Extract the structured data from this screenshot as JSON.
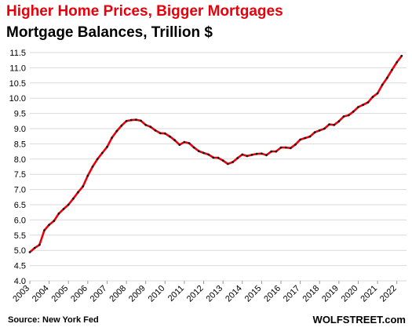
{
  "header": {
    "title": "Higher Home Prices, Bigger Mortgages",
    "subtitle": "Mortgage Balances, Trillion $"
  },
  "footer": {
    "source": "Source: New York Fed",
    "brand": "WOLFSTREET.com"
  },
  "colors": {
    "line": "#e8000b",
    "marker": "#1a1a1a",
    "grid": "#d9d9d9",
    "title": "#e8000b"
  },
  "chart_data": {
    "type": "line",
    "title": "Higher Home Prices, Bigger Mortgages",
    "subtitle": "Mortgage Balances, Trillion $",
    "xlabel": "",
    "ylabel": "",
    "ylim": [
      4.0,
      11.5
    ],
    "yticks": [
      "4.0",
      "4.5",
      "5.0",
      "5.5",
      "6.0",
      "6.5",
      "7.0",
      "7.5",
      "8.0",
      "8.5",
      "9.0",
      "9.5",
      "10.0",
      "10.5",
      "11.0",
      "11.5"
    ],
    "xticks": [
      "2003",
      "2004",
      "2005",
      "2006",
      "2007",
      "2008",
      "2009",
      "2010",
      "2011",
      "2012",
      "2013",
      "2014",
      "2015",
      "2016",
      "2017",
      "2018",
      "2019",
      "2020",
      "2021",
      "2022"
    ],
    "grid": "horizontal",
    "series": [
      {
        "x": [
          "2003 Q1",
          "2003 Q2",
          "2003 Q3",
          "2003 Q4",
          "2004 Q1",
          "2004 Q2",
          "2004 Q3",
          "2004 Q4",
          "2005 Q1",
          "2005 Q2",
          "2005 Q3",
          "2005 Q4",
          "2006 Q1",
          "2006 Q2",
          "2006 Q3",
          "2006 Q4",
          "2007 Q1",
          "2007 Q2",
          "2007 Q3",
          "2007 Q4",
          "2008 Q1",
          "2008 Q2",
          "2008 Q3",
          "2008 Q4",
          "2009 Q1",
          "2009 Q2",
          "2009 Q3",
          "2009 Q4",
          "2010 Q1",
          "2010 Q2",
          "2010 Q3",
          "2010 Q4",
          "2011 Q1",
          "2011 Q2",
          "2011 Q3",
          "2011 Q4",
          "2012 Q1",
          "2012 Q2",
          "2012 Q3",
          "2012 Q4",
          "2013 Q1",
          "2013 Q2",
          "2013 Q3",
          "2013 Q4",
          "2014 Q1",
          "2014 Q2",
          "2014 Q3",
          "2014 Q4",
          "2015 Q1",
          "2015 Q2",
          "2015 Q3",
          "2015 Q4",
          "2016 Q1",
          "2016 Q2",
          "2016 Q3",
          "2016 Q4",
          "2017 Q1",
          "2017 Q2",
          "2017 Q3",
          "2017 Q4",
          "2018 Q1",
          "2018 Q2",
          "2018 Q3",
          "2018 Q4",
          "2019 Q1",
          "2019 Q2",
          "2019 Q3",
          "2019 Q4",
          "2020 Q1",
          "2020 Q2",
          "2020 Q3",
          "2020 Q4",
          "2021 Q1",
          "2021 Q2",
          "2021 Q3",
          "2021 Q4",
          "2022 Q1",
          "2022 Q2"
        ],
        "values": [
          4.94,
          5.08,
          5.18,
          5.66,
          5.84,
          5.97,
          6.21,
          6.36,
          6.5,
          6.7,
          6.91,
          7.1,
          7.45,
          7.75,
          8.0,
          8.2,
          8.4,
          8.7,
          8.92,
          9.1,
          9.25,
          9.28,
          9.29,
          9.26,
          9.12,
          9.06,
          8.94,
          8.85,
          8.84,
          8.74,
          8.62,
          8.47,
          8.56,
          8.52,
          8.38,
          8.26,
          8.2,
          8.15,
          8.05,
          8.04,
          7.95,
          7.84,
          7.9,
          8.03,
          8.15,
          8.1,
          8.14,
          8.17,
          8.18,
          8.13,
          8.25,
          8.25,
          8.38,
          8.38,
          8.36,
          8.48,
          8.64,
          8.69,
          8.74,
          8.88,
          8.94,
          9.0,
          9.14,
          9.12,
          9.24,
          9.4,
          9.44,
          9.56,
          9.71,
          9.78,
          9.86,
          10.04,
          10.16,
          10.44,
          10.67,
          10.93,
          11.18,
          11.39
        ]
      }
    ]
  }
}
